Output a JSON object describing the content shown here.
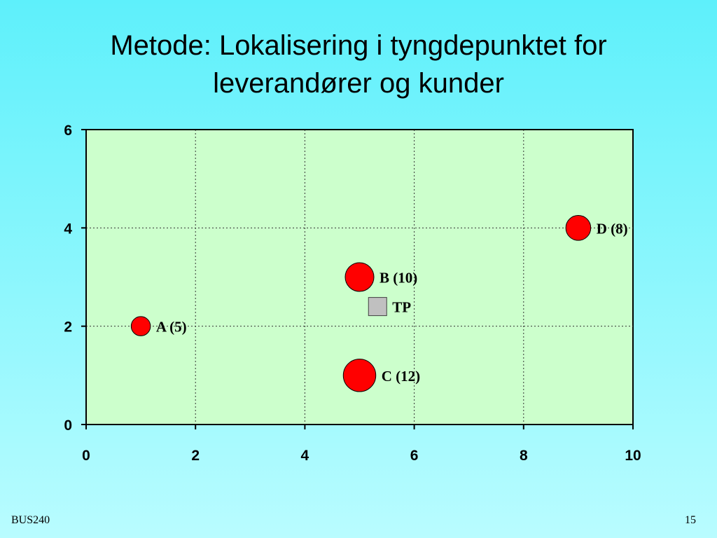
{
  "slide": {
    "title_line1": "Metode: Lokalisering i tyngdepunktet for",
    "title_line2": "leverandører og kunder",
    "footer_left": "BUS240",
    "page_number": "15"
  },
  "chart_data": {
    "type": "scatter",
    "title": "",
    "xlabel": "",
    "ylabel": "",
    "xlim": [
      0,
      10
    ],
    "ylim": [
      0,
      6
    ],
    "xticks": [
      0,
      2,
      4,
      6,
      8,
      10
    ],
    "yticks": [
      0,
      2,
      4,
      6
    ],
    "grid": true,
    "plot_background": "#ccffcc",
    "points": [
      {
        "label": "A (5)",
        "x": 1,
        "y": 2,
        "weight": 5,
        "shape": "circle",
        "color": "#ff0000"
      },
      {
        "label": "B (10)",
        "x": 5,
        "y": 3,
        "weight": 10,
        "shape": "circle",
        "color": "#ff0000"
      },
      {
        "label": "C (12)",
        "x": 5,
        "y": 1,
        "weight": 12,
        "shape": "circle",
        "color": "#ff0000"
      },
      {
        "label": "D (8)",
        "x": 9,
        "y": 4,
        "weight": 8,
        "shape": "circle",
        "color": "#ff0000"
      },
      {
        "label": "TP",
        "x": 5.33,
        "y": 2.4,
        "shape": "square",
        "color": "#c0c0c0"
      }
    ]
  }
}
